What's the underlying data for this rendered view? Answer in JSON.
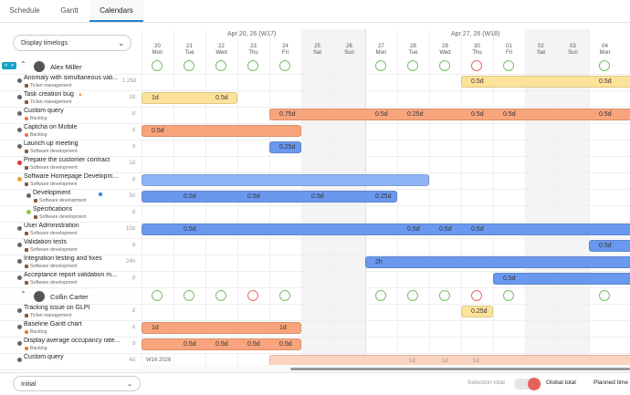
{
  "tabs": [
    {
      "label": "Schedule",
      "active": false
    },
    {
      "label": "Gantt",
      "active": false
    },
    {
      "label": "Calendars",
      "active": true
    }
  ],
  "display_select": {
    "value": "Display timelogs"
  },
  "weeks": [
    {
      "label": "Apr 20, 26 (W17)"
    },
    {
      "label": "Apr 27, 26 (W18)"
    }
  ],
  "days": [
    {
      "num": "20",
      "day": "Mon",
      "weekend": false
    },
    {
      "num": "21",
      "day": "Tue",
      "weekend": false
    },
    {
      "num": "22",
      "day": "Wed",
      "weekend": false
    },
    {
      "num": "23",
      "day": "Thu",
      "weekend": false
    },
    {
      "num": "24",
      "day": "Fri",
      "weekend": false
    },
    {
      "num": "25",
      "day": "Sat",
      "weekend": true
    },
    {
      "num": "26",
      "day": "Sun",
      "weekend": true
    },
    {
      "num": "27",
      "day": "Mon",
      "weekend": false
    },
    {
      "num": "28",
      "day": "Tue",
      "weekend": false
    },
    {
      "num": "29",
      "day": "Wed",
      "weekend": false
    },
    {
      "num": "30",
      "day": "Thu",
      "weekend": false
    },
    {
      "num": "01",
      "day": "Fri",
      "weekend": false
    },
    {
      "num": "02",
      "day": "Sat",
      "weekend": true
    },
    {
      "num": "03",
      "day": "Sun",
      "weekend": true
    },
    {
      "num": "04",
      "day": "Mon",
      "weekend": false
    }
  ],
  "users": [
    {
      "name": "Alex Miller"
    },
    {
      "name": "Collin Carter"
    }
  ],
  "tasks": [
    {
      "title": "Anomaly with simultaneous vali...",
      "sub": "Ticket management",
      "right": "1.25d"
    },
    {
      "title": "Task creation bug",
      "sub": "Ticket management",
      "right": "2d"
    },
    {
      "title": "Custom query",
      "sub": "Backlog",
      "right": "d"
    },
    {
      "title": "Captcha on Mobile",
      "sub": "Backlog",
      "right": "d"
    },
    {
      "title": "Launch up meeting",
      "sub": "Software development",
      "right": "d"
    },
    {
      "title": "Prepare the customer contract",
      "sub": "Software development",
      "right": "1d"
    },
    {
      "title": "Software Homepage Developm...",
      "sub": "Software development",
      "right": "d"
    },
    {
      "title": "Development",
      "sub": "Software development",
      "right": "3d"
    },
    {
      "title": "Specifications",
      "sub": "Software development",
      "right": "d"
    },
    {
      "title": "User Administration",
      "sub": "Software development",
      "right": "10d"
    },
    {
      "title": "Validation tests",
      "sub": "Software development",
      "right": "d"
    },
    {
      "title": "Integration testing and fixes",
      "sub": "Software development",
      "right": "24h"
    },
    {
      "title": "Acceptance report validation m...",
      "sub": "Software development",
      "right": "d"
    },
    {
      "title": "Tracking issue on GLPI",
      "sub": "Ticket management",
      "right": "d"
    },
    {
      "title": "Baseline Gantt chart",
      "sub": "Backlog",
      "right": "d"
    },
    {
      "title": "Display average occupancy rate...",
      "sub": "Backlog",
      "right": "d"
    },
    {
      "title": "Custom query",
      "sub": "",
      "right": "4d"
    }
  ],
  "bar_labels": {
    "t0_a": "0.5d",
    "t0_b": "0.5d",
    "t1_a": "1d",
    "t1_b": "0.5d",
    "t2_a": "0.75d",
    "t2_b": "0.5d",
    "t2_c": "0.25d",
    "t2_d": "0.5d",
    "t2_e": "0.5d",
    "t2_f": "0.5d",
    "t3_a": "0.5d",
    "t4_a": "0.25d",
    "t7_a": "0.5d",
    "t7_b": "0.5d",
    "t7_c": "0.5d",
    "t7_d": "0.25d",
    "t9_a": "0.5d",
    "t9_b": "0.5d",
    "t9_c": "0.5d",
    "t9_d": "0.5d",
    "t10_a": "0.5d",
    "t11_a": "2h",
    "t12_a": "0.5d",
    "t13_a": "0.25d",
    "t14_a": "1d",
    "t14_b": "1d",
    "t15_a": "0.5d",
    "t15_b": "0.5d",
    "t15_c": "0.5d",
    "t15_d": "0.5d"
  },
  "colors": {
    "yellow": "#fde39a",
    "orange": "#f8a47c",
    "blue": "#8fb4f5",
    "blue_dark": "#6a98ee"
  },
  "footer": {
    "date_label": "W16 2026",
    "col_labels": [
      "1d",
      "1d",
      "1d"
    ],
    "initial_select": "Initial",
    "selection_total": "Selection total",
    "global_total": "Global total",
    "planned_time": "Planned time"
  }
}
